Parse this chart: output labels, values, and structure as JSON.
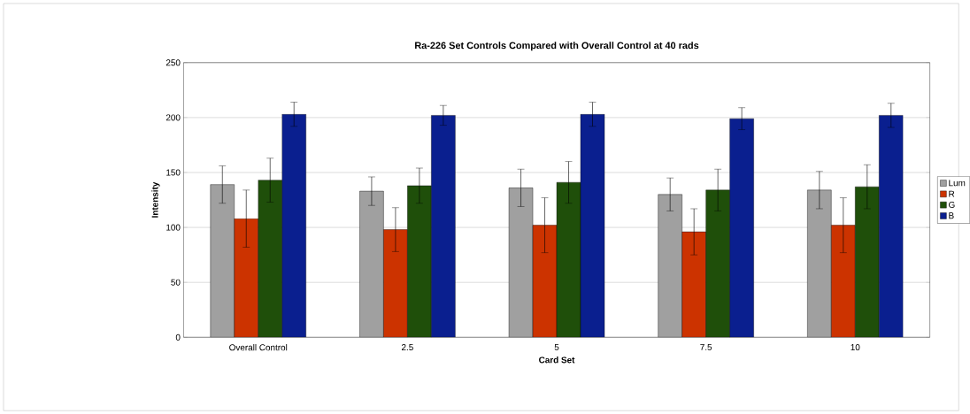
{
  "chart_data": {
    "type": "bar",
    "title": "Ra-226 Set Controls Compared with Overall Control at 40 rads",
    "xlabel": "Card Set",
    "ylabel": "Intensity",
    "categories": [
      "Overall Control",
      "2.5",
      "5",
      "7.5",
      "10"
    ],
    "series": [
      {
        "name": "Lum",
        "color": "#a0a0a0",
        "values": [
          139,
          133,
          136,
          130,
          134
        ],
        "errors": [
          17,
          13,
          17,
          15,
          17
        ]
      },
      {
        "name": "R",
        "color": "#cc3300",
        "values": [
          108,
          98,
          102,
          96,
          102
        ],
        "errors": [
          26,
          20,
          25,
          21,
          25
        ]
      },
      {
        "name": "G",
        "color": "#1f4f0a",
        "values": [
          143,
          138,
          141,
          134,
          137
        ],
        "errors": [
          20,
          16,
          19,
          19,
          20
        ]
      },
      {
        "name": "B",
        "color": "#0a1f8f",
        "values": [
          203,
          202,
          203,
          199,
          202
        ],
        "errors": [
          11,
          9,
          11,
          10,
          11
        ]
      }
    ],
    "ylim": [
      0,
      250
    ],
    "yticks": [
      0,
      50,
      100,
      150,
      200,
      250
    ],
    "grid": "y",
    "legend": "right"
  }
}
